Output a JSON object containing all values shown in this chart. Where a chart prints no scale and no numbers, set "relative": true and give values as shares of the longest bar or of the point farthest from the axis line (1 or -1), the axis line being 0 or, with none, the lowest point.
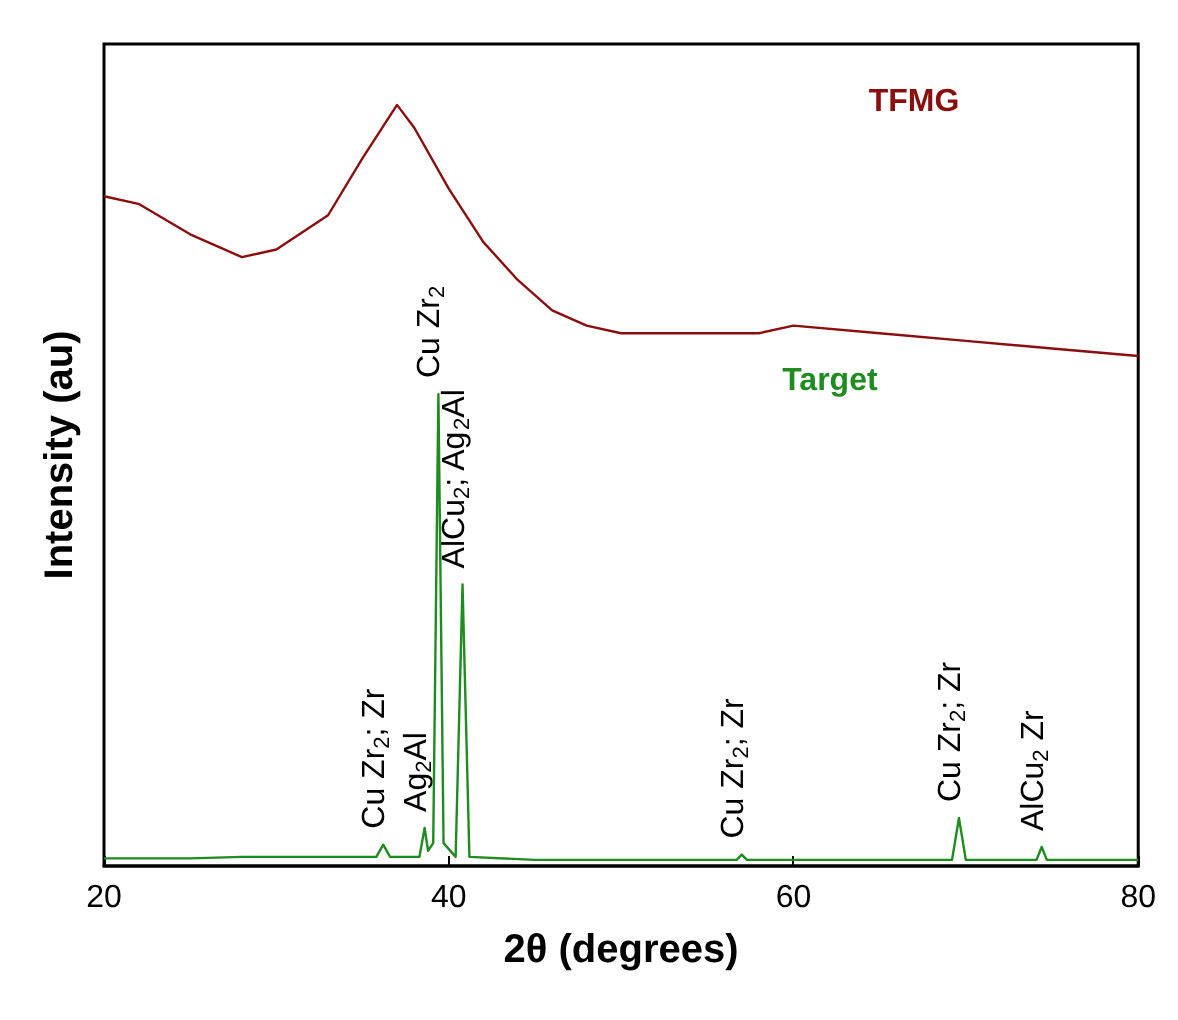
{
  "chart_data": {
    "type": "line",
    "relative": true,
    "xlabel": "2θ (degrees)",
    "ylabel": "Intensity (au)",
    "xlim": [
      20,
      80
    ],
    "xticks": [
      20,
      40,
      60,
      80
    ],
    "grid": false,
    "legend": false,
    "marker": "none",
    "line_style": "solid",
    "series": [
      {
        "name": "TFMG",
        "color": "#8b0e0e",
        "x": [
          20,
          22,
          25,
          28,
          30,
          33,
          35,
          37,
          38,
          40,
          42,
          44,
          46,
          48,
          50,
          55,
          58,
          60,
          65,
          70,
          75,
          80
        ],
        "values": [
          0.88,
          0.87,
          0.83,
          0.8,
          0.81,
          0.855,
          0.93,
          1.0,
          0.97,
          0.89,
          0.82,
          0.77,
          0.73,
          0.71,
          0.7,
          0.7,
          0.7,
          0.71,
          0.7,
          0.69,
          0.68,
          0.67
        ]
      },
      {
        "name": "Target",
        "color": "#1e8c1e",
        "x": [
          20,
          25,
          28,
          30,
          35,
          35.8,
          36.2,
          36.6,
          38.3,
          38.6,
          38.8,
          39.1,
          39.4,
          39.7,
          40.4,
          40.8,
          41.2,
          45,
          50,
          56.7,
          57,
          57.3,
          65,
          69.2,
          69.6,
          70,
          74.1,
          74.4,
          74.7,
          80
        ],
        "values": [
          0.01,
          0.01,
          0.012,
          0.012,
          0.012,
          0.012,
          0.028,
          0.012,
          0.012,
          0.05,
          0.02,
          0.03,
          0.62,
          0.03,
          0.012,
          0.37,
          0.012,
          0.008,
          0.008,
          0.008,
          0.015,
          0.008,
          0.008,
          0.008,
          0.063,
          0.008,
          0.008,
          0.025,
          0.008,
          0.008
        ]
      }
    ],
    "annotations": [
      {
        "text": "Cu Zr$_{2}$; Zr",
        "x": 36.2,
        "y": 0.028
      },
      {
        "text": "Ag$_{2}$Al",
        "x": 38.6,
        "y": 0.05
      },
      {
        "text": "Cu Zr$_{2}$",
        "x": 39.4,
        "y": 0.62
      },
      {
        "text": "AlCu$_{2}$; Ag$_{2}$Al",
        "x": 40.8,
        "y": 0.37
      },
      {
        "text": "Cu Zr$_{2}$; Zr",
        "x": 57,
        "y": 0.015
      },
      {
        "text": "Cu Zr$_{2}$; Zr",
        "x": 69.6,
        "y": 0.063
      },
      {
        "text": "AlCu$_{2}$ Zr",
        "x": 74.4,
        "y": 0.025
      }
    ]
  }
}
